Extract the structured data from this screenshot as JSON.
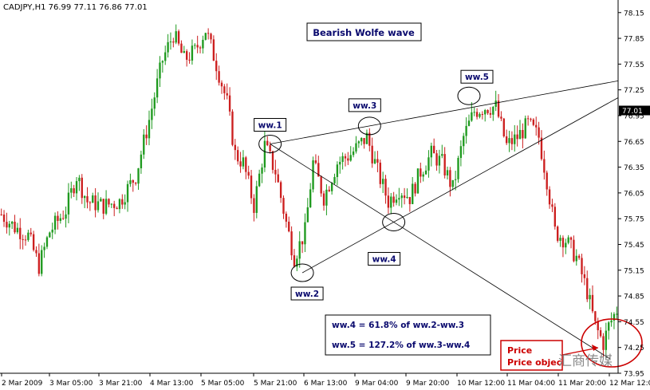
{
  "chart_data": {
    "type": "candlestick",
    "symbol_line": "CADJPY,H1  76.99 77.11 76.86 77.01",
    "title": "Bearish Wolfe wave",
    "current_price_label": "77.01",
    "current_price": 77.01,
    "ylim": [
      73.95,
      78.25
    ],
    "y_ticks": [
      "78.15",
      "77.85",
      "77.55",
      "77.25",
      "76.95",
      "76.65",
      "76.35",
      "76.05",
      "75.75",
      "75.45",
      "75.15",
      "74.85",
      "74.55",
      "74.25",
      "73.95"
    ],
    "x_ticks": [
      "2 Mar 2009",
      "3 Mar 05:00",
      "3 Mar 21:00",
      "4 Mar 13:00",
      "5 Mar 05:00",
      "5 Mar 21:00",
      "6 Mar 13:00",
      "9 Mar 04:00",
      "9 Mar 20:00",
      "10 Mar 12:00",
      "11 Mar 04:00",
      "11 Mar 20:00",
      "12 Mar 12:00"
    ],
    "bar_count": 230,
    "trend_path": [
      [
        0,
        75.8
      ],
      [
        5,
        75.65
      ],
      [
        10,
        75.55
      ],
      [
        14,
        75.2
      ],
      [
        18,
        75.6
      ],
      [
        24,
        75.85
      ],
      [
        28,
        76.25
      ],
      [
        32,
        75.95
      ],
      [
        38,
        75.9
      ],
      [
        44,
        75.95
      ],
      [
        50,
        76.25
      ],
      [
        55,
        76.9
      ],
      [
        60,
        77.6
      ],
      [
        64,
        77.9
      ],
      [
        68,
        77.6
      ],
      [
        72,
        77.7
      ],
      [
        76,
        77.95
      ],
      [
        80,
        77.55
      ],
      [
        84,
        77.1
      ],
      [
        87,
        76.5
      ],
      [
        90,
        76.4
      ],
      [
        94,
        75.9
      ],
      [
        98,
        76.6
      ],
      [
        102,
        76.3
      ],
      [
        106,
        75.7
      ],
      [
        109,
        75.3
      ],
      [
        113,
        75.6
      ],
      [
        116,
        76.4
      ],
      [
        120,
        76.0
      ],
      [
        125,
        76.4
      ],
      [
        130,
        76.5
      ],
      [
        136,
        76.7
      ],
      [
        140,
        76.3
      ],
      [
        144,
        75.95
      ],
      [
        148,
        76.1
      ],
      [
        152,
        76.0
      ],
      [
        156,
        76.3
      ],
      [
        160,
        76.5
      ],
      [
        164,
        76.4
      ],
      [
        168,
        76.1
      ],
      [
        172,
        76.7
      ],
      [
        176,
        77.0
      ],
      [
        180,
        77.05
      ],
      [
        184,
        77.05
      ],
      [
        188,
        76.6
      ],
      [
        192,
        76.7
      ],
      [
        196,
        76.85
      ],
      [
        200,
        76.7
      ],
      [
        203,
        76.2
      ],
      [
        206,
        75.6
      ],
      [
        210,
        75.5
      ],
      [
        214,
        75.3
      ],
      [
        218,
        74.9
      ],
      [
        221,
        74.5
      ],
      [
        224,
        74.3
      ],
      [
        226,
        74.5
      ],
      [
        230,
        74.75
      ]
    ],
    "wolfe_points": [
      {
        "label": "ww.1",
        "bar": 100,
        "price": 76.62
      },
      {
        "label": "ww.2",
        "bar": 112,
        "price": 75.12
      },
      {
        "label": "ww.3",
        "bar": 137,
        "price": 76.83
      },
      {
        "label": "ww.4",
        "bar": 146,
        "price": 75.71
      },
      {
        "label": "ww.5",
        "bar": 174,
        "price": 77.18
      }
    ],
    "annotations": {
      "ww4_ratio": "ww.4 = 61.8% of ww.2-ww.3",
      "ww5_ratio": "ww.5 = 127.2% of ww.3-ww.4",
      "price_objective": "Price objec",
      "watermark": "汇商传媒"
    }
  }
}
